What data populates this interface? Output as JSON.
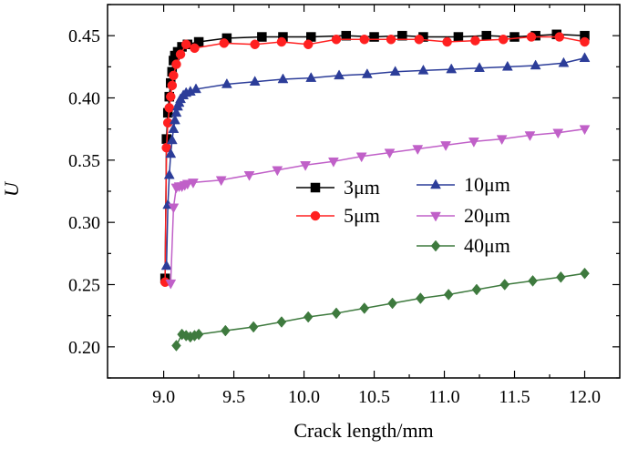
{
  "chart_data": {
    "type": "line",
    "title": "",
    "xlabel": "Crack length/mm",
    "ylabel": "U",
    "xlim": [
      8.6,
      12.25
    ],
    "ylim": [
      0.175,
      0.475
    ],
    "xticks": [
      "9.0",
      "9.5",
      "10.0",
      "10.5",
      "11.0",
      "11.5",
      "12.0"
    ],
    "yticks": [
      "0.20",
      "0.25",
      "0.30",
      "0.35",
      "0.40",
      "0.45"
    ],
    "grid": false,
    "legend_position": "center-right",
    "series": [
      {
        "name": "3μm",
        "color": "#000000",
        "marker": "square",
        "x": [
          9.01,
          9.02,
          9.03,
          9.04,
          9.05,
          9.06,
          9.07,
          9.08,
          9.1,
          9.13,
          9.17,
          9.25,
          9.45,
          9.7,
          9.85,
          10.05,
          10.3,
          10.5,
          10.7,
          10.85,
          11.1,
          11.3,
          11.5,
          11.65,
          11.8,
          12.0
        ],
        "y": [
          0.255,
          0.367,
          0.388,
          0.401,
          0.412,
          0.421,
          0.43,
          0.434,
          0.437,
          0.441,
          0.443,
          0.445,
          0.448,
          0.449,
          0.449,
          0.449,
          0.45,
          0.449,
          0.45,
          0.449,
          0.449,
          0.45,
          0.449,
          0.45,
          0.451,
          0.45
        ]
      },
      {
        "name": "5μm",
        "color": "#ff2020",
        "marker": "circle",
        "x": [
          9.01,
          9.02,
          9.03,
          9.04,
          9.05,
          9.06,
          9.07,
          9.09,
          9.12,
          9.16,
          9.22,
          9.43,
          9.65,
          9.84,
          10.03,
          10.23,
          10.43,
          10.62,
          10.82,
          11.02,
          11.22,
          11.42,
          11.62,
          11.82,
          12.0
        ],
        "y": [
          0.252,
          0.36,
          0.38,
          0.392,
          0.401,
          0.41,
          0.418,
          0.427,
          0.435,
          0.443,
          0.44,
          0.444,
          0.443,
          0.445,
          0.443,
          0.447,
          0.447,
          0.447,
          0.447,
          0.445,
          0.446,
          0.447,
          0.449,
          0.449,
          0.445
        ]
      },
      {
        "name": "10μm",
        "color": "#2c3d99",
        "marker": "triangle-up",
        "x": [
          9.02,
          9.03,
          9.04,
          9.05,
          9.06,
          9.07,
          9.08,
          9.09,
          9.1,
          9.11,
          9.12,
          9.14,
          9.16,
          9.19,
          9.23,
          9.45,
          9.65,
          9.85,
          10.05,
          10.25,
          10.45,
          10.65,
          10.85,
          11.05,
          11.25,
          11.45,
          11.65,
          11.85,
          12.0
        ],
        "y": [
          0.265,
          0.314,
          0.338,
          0.355,
          0.366,
          0.375,
          0.382,
          0.388,
          0.393,
          0.396,
          0.399,
          0.402,
          0.404,
          0.405,
          0.407,
          0.411,
          0.413,
          0.415,
          0.416,
          0.418,
          0.419,
          0.421,
          0.422,
          0.423,
          0.424,
          0.425,
          0.426,
          0.428,
          0.432
        ]
      },
      {
        "name": "20μm",
        "color": "#c060c8",
        "marker": "triangle-down",
        "x": [
          9.05,
          9.07,
          9.09,
          9.11,
          9.13,
          9.15,
          9.17,
          9.21,
          9.41,
          9.61,
          9.81,
          10.01,
          10.21,
          10.41,
          10.61,
          10.81,
          11.01,
          11.21,
          11.41,
          11.61,
          11.81,
          12.0
        ],
        "y": [
          0.251,
          0.312,
          0.328,
          0.329,
          0.329,
          0.33,
          0.331,
          0.332,
          0.334,
          0.338,
          0.342,
          0.346,
          0.349,
          0.353,
          0.356,
          0.359,
          0.362,
          0.365,
          0.367,
          0.37,
          0.372,
          0.375
        ]
      },
      {
        "name": "40μm",
        "color": "#3e7a3e",
        "marker": "diamond",
        "x": [
          9.09,
          9.13,
          9.16,
          9.19,
          9.22,
          9.25,
          9.44,
          9.64,
          9.84,
          10.03,
          10.23,
          10.43,
          10.63,
          10.83,
          11.03,
          11.23,
          11.43,
          11.63,
          11.83,
          12.0
        ],
        "y": [
          0.201,
          0.21,
          0.209,
          0.208,
          0.209,
          0.21,
          0.213,
          0.216,
          0.22,
          0.224,
          0.227,
          0.231,
          0.235,
          0.239,
          0.242,
          0.246,
          0.25,
          0.253,
          0.256,
          0.259
        ]
      }
    ]
  }
}
